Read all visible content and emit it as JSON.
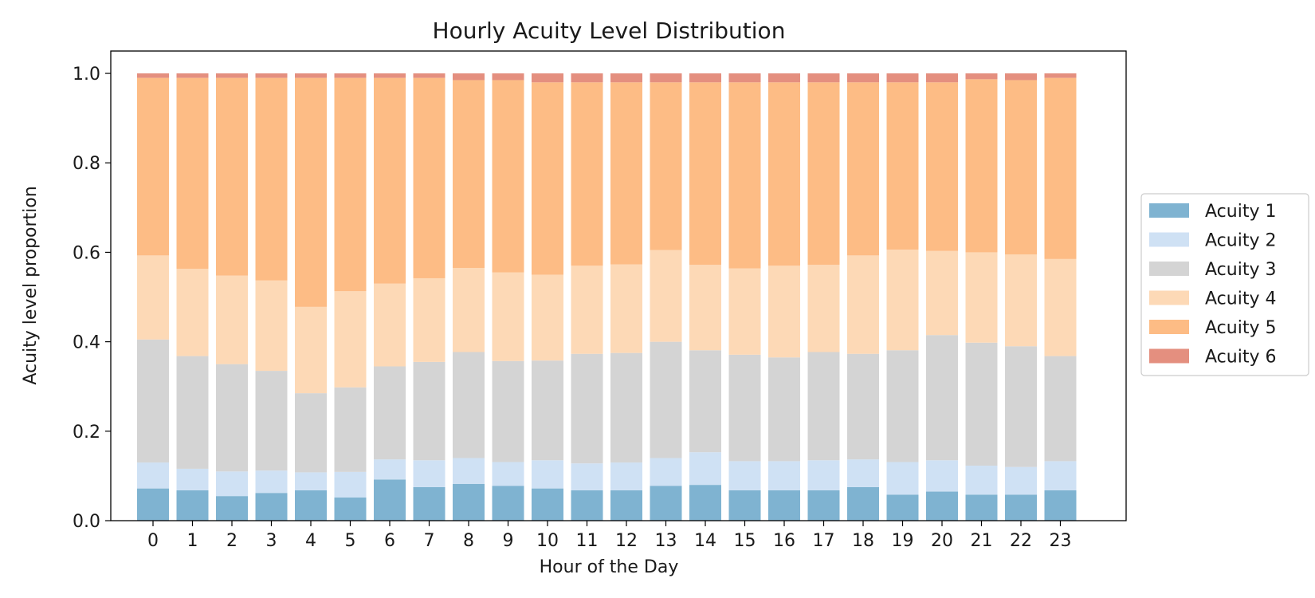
{
  "chart_data": {
    "type": "bar",
    "stacked": true,
    "title": "Hourly Acuity Level Distribution",
    "xlabel": "Hour of the Day",
    "ylabel": "Acuity level proportion",
    "ylim": [
      0,
      1.05
    ],
    "yticks": [
      "0.0",
      "0.2",
      "0.4",
      "0.6",
      "0.8",
      "1.0"
    ],
    "legend_position": "right",
    "grid": false,
    "categories": [
      "0",
      "1",
      "2",
      "3",
      "4",
      "5",
      "6",
      "7",
      "8",
      "9",
      "10",
      "11",
      "12",
      "13",
      "14",
      "15",
      "16",
      "17",
      "18",
      "19",
      "20",
      "21",
      "22",
      "23"
    ],
    "series": [
      {
        "name": "Acuity 1",
        "color": "#7fb3d1",
        "values": [
          0.072,
          0.068,
          0.055,
          0.062,
          0.068,
          0.052,
          0.092,
          0.075,
          0.082,
          0.078,
          0.072,
          0.068,
          0.068,
          0.078,
          0.08,
          0.068,
          0.068,
          0.068,
          0.075,
          0.058,
          0.065,
          0.058,
          0.058,
          0.068
        ]
      },
      {
        "name": "Acuity 2",
        "color": "#cfe1f4",
        "values": [
          0.058,
          0.048,
          0.055,
          0.05,
          0.04,
          0.057,
          0.045,
          0.06,
          0.058,
          0.053,
          0.063,
          0.06,
          0.062,
          0.062,
          0.073,
          0.065,
          0.065,
          0.067,
          0.062,
          0.073,
          0.07,
          0.065,
          0.062,
          0.065
        ]
      },
      {
        "name": "Acuity 3",
        "color": "#d4d4d4",
        "values": [
          0.275,
          0.252,
          0.24,
          0.223,
          0.177,
          0.189,
          0.208,
          0.22,
          0.237,
          0.226,
          0.223,
          0.245,
          0.245,
          0.26,
          0.228,
          0.238,
          0.232,
          0.242,
          0.236,
          0.25,
          0.28,
          0.275,
          0.27,
          0.235
        ]
      },
      {
        "name": "Acuity 4",
        "color": "#fdd9b6",
        "values": [
          0.188,
          0.195,
          0.198,
          0.202,
          0.193,
          0.215,
          0.185,
          0.187,
          0.188,
          0.198,
          0.192,
          0.197,
          0.198,
          0.205,
          0.191,
          0.193,
          0.205,
          0.195,
          0.22,
          0.225,
          0.188,
          0.202,
          0.205,
          0.217
        ]
      },
      {
        "name": "Acuity 5",
        "color": "#fdbc85",
        "values": [
          0.397,
          0.427,
          0.442,
          0.453,
          0.512,
          0.477,
          0.46,
          0.448,
          0.42,
          0.43,
          0.43,
          0.41,
          0.407,
          0.375,
          0.408,
          0.416,
          0.41,
          0.408,
          0.387,
          0.374,
          0.377,
          0.387,
          0.39,
          0.405
        ]
      },
      {
        "name": "Acuity 6",
        "color": "#e48f7f",
        "values": [
          0.01,
          0.01,
          0.01,
          0.01,
          0.01,
          0.01,
          0.01,
          0.01,
          0.015,
          0.015,
          0.02,
          0.02,
          0.02,
          0.02,
          0.02,
          0.02,
          0.02,
          0.02,
          0.02,
          0.02,
          0.02,
          0.013,
          0.015,
          0.01
        ]
      }
    ]
  }
}
